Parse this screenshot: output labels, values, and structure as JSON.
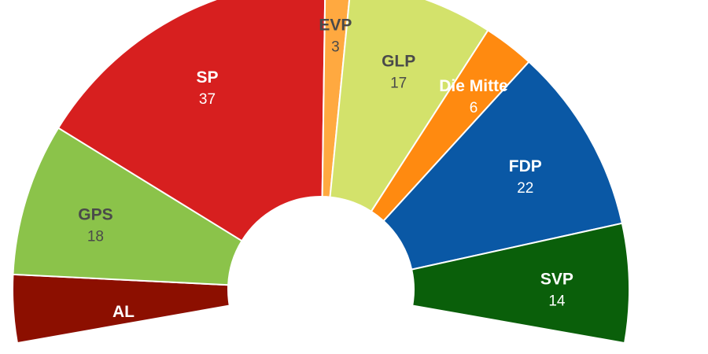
{
  "chart_data": {
    "type": "pie",
    "variant": "half-donut",
    "title": "",
    "total_seats": 125,
    "series": [
      {
        "name": "Seats",
        "slices": [
          {
            "label": "AL",
            "value": 8,
            "color": "#8c0f00",
            "text_color": "#ffffff"
          },
          {
            "label": "GPS",
            "value": 18,
            "color": "#8bc34a",
            "text_color": "#4a4a4a"
          },
          {
            "label": "SP",
            "value": 37,
            "color": "#d71f1f",
            "text_color": "#ffffff"
          },
          {
            "label": "EVP",
            "value": 3,
            "color": "#ffa940",
            "text_color": "#4a4a4a"
          },
          {
            "label": "GLP",
            "value": 17,
            "color": "#d3e26b",
            "text_color": "#4a4a4a"
          },
          {
            "label": "Die Mitte",
            "value": 6,
            "color": "#ff8a10",
            "text_color": "#ffffff"
          },
          {
            "label": "FDP",
            "value": 22,
            "color": "#0a58a5",
            "text_color": "#ffffff"
          },
          {
            "label": "SVP",
            "value": 14,
            "color": "#0a5f0a",
            "text_color": "#ffffff"
          }
        ]
      }
    ],
    "legend": "none",
    "labels_on_segments": true
  }
}
